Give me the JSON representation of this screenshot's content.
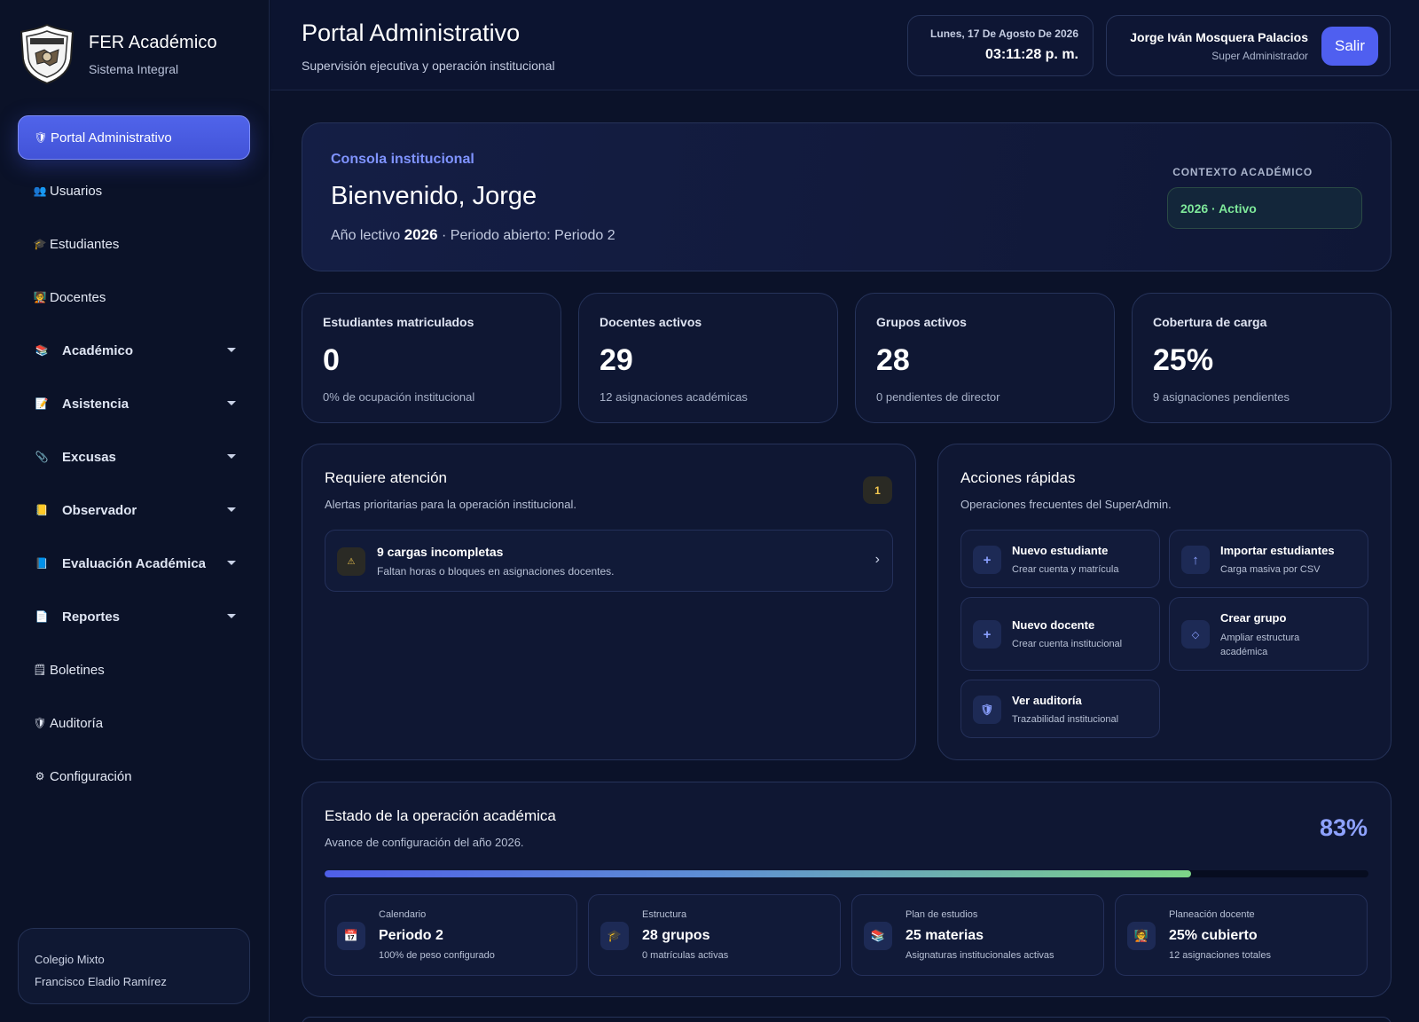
{
  "brand": {
    "title": "FER Académico",
    "subtitle": "Sistema Integral",
    "crest_icon": "school-crest-icon"
  },
  "sidebar": {
    "items": [
      {
        "label": "Portal Administrativo",
        "icon": "🛡",
        "active": true,
        "group": false
      },
      {
        "label": "Usuarios",
        "icon": "👥",
        "group": false
      },
      {
        "label": "Estudiantes",
        "icon": "🎓",
        "group": false
      },
      {
        "label": "Docentes",
        "icon": "🧑‍🏫",
        "group": false
      },
      {
        "label": "Académico",
        "icon": "📚",
        "group": true
      },
      {
        "label": "Asistencia",
        "icon": "📝",
        "group": true
      },
      {
        "label": "Excusas",
        "icon": "📎",
        "group": true
      },
      {
        "label": "Observador",
        "icon": "📒",
        "group": true
      },
      {
        "label": "Evaluación Académica",
        "icon": "📘",
        "group": true
      },
      {
        "label": "Reportes",
        "icon": "📄",
        "group": true
      },
      {
        "label": "Boletines",
        "icon": "🗒",
        "group": false
      },
      {
        "label": "Auditoría",
        "icon": "🛡",
        "group": false
      },
      {
        "label": "Configuración",
        "icon": "⚙",
        "group": false
      }
    ],
    "school": {
      "line1": "Colegio Mixto",
      "line2": "Francisco Eladio Ramírez"
    }
  },
  "header": {
    "title": "Portal Administrativo",
    "subtitle": "Supervisión ejecutiva y operación institucional",
    "date": "Lunes, 17 De Agosto De 2026",
    "time": "03:11:28 p. m.",
    "user_name": "Jorge Iván Mosquera Palacios",
    "user_role": "Super Administrador",
    "logout_label": "Salir"
  },
  "hero": {
    "kicker": "Consola institucional",
    "title": "Bienvenido, Jorge",
    "year_prefix": "Año lectivo",
    "year": "2026",
    "period_text": "· Periodo abierto: Periodo 2",
    "context_label": "CONTEXTO ACADÉMICO",
    "context_value": "2026 · Activo"
  },
  "stats": [
    {
      "label": "Estudiantes matriculados",
      "value": "0",
      "sub": "0% de ocupación institucional"
    },
    {
      "label": "Docentes activos",
      "value": "29",
      "sub": "12 asignaciones académicas"
    },
    {
      "label": "Grupos activos",
      "value": "28",
      "sub": "0 pendientes de director"
    },
    {
      "label": "Cobertura de carga",
      "value": "25%",
      "sub": "9 asignaciones pendientes"
    }
  ],
  "attention": {
    "title": "Requiere atención",
    "subtitle": "Alertas prioritarias para la operación institucional.",
    "count": "1",
    "alert": {
      "icon": "warning-icon",
      "title": "9 cargas incompletas",
      "sub": "Faltan horas o bloques en asignaciones docentes."
    }
  },
  "quick": {
    "title": "Acciones rápidas",
    "subtitle": "Operaciones frecuentes del SuperAdmin.",
    "actions": [
      {
        "title": "Nuevo estudiante",
        "sub": "Crear cuenta y matrícula",
        "icon": "+"
      },
      {
        "title": "Importar estudiantes",
        "sub": "Carga masiva por CSV",
        "icon": "↑"
      },
      {
        "title": "Nuevo docente",
        "sub": "Crear cuenta institucional",
        "icon": "+"
      },
      {
        "title": "Crear grupo",
        "sub": "Ampliar estructura académica",
        "icon": "◇"
      },
      {
        "title": "Ver auditoría",
        "sub": "Trazabilidad institucional",
        "icon": "🛡"
      }
    ]
  },
  "operations": {
    "title": "Estado de la operación académica",
    "subtitle": "Avance de configuración del año 2026.",
    "percent": "83%",
    "progress": 0.83,
    "cards": [
      {
        "kicker": "Calendario",
        "title": "Periodo 2",
        "sub": "100% de peso configurado",
        "icon": "📅"
      },
      {
        "kicker": "Estructura",
        "title": "28 grupos",
        "sub": "0 matrículas activas",
        "icon": "🎓"
      },
      {
        "kicker": "Plan de estudios",
        "title": "25 materias",
        "sub": "Asignaturas institucionales activas",
        "icon": "📚"
      },
      {
        "kicker": "Planeación docente",
        "title": "25% cubierto",
        "sub": "12 asignaciones totales",
        "icon": "🧑‍🏫"
      }
    ]
  }
}
